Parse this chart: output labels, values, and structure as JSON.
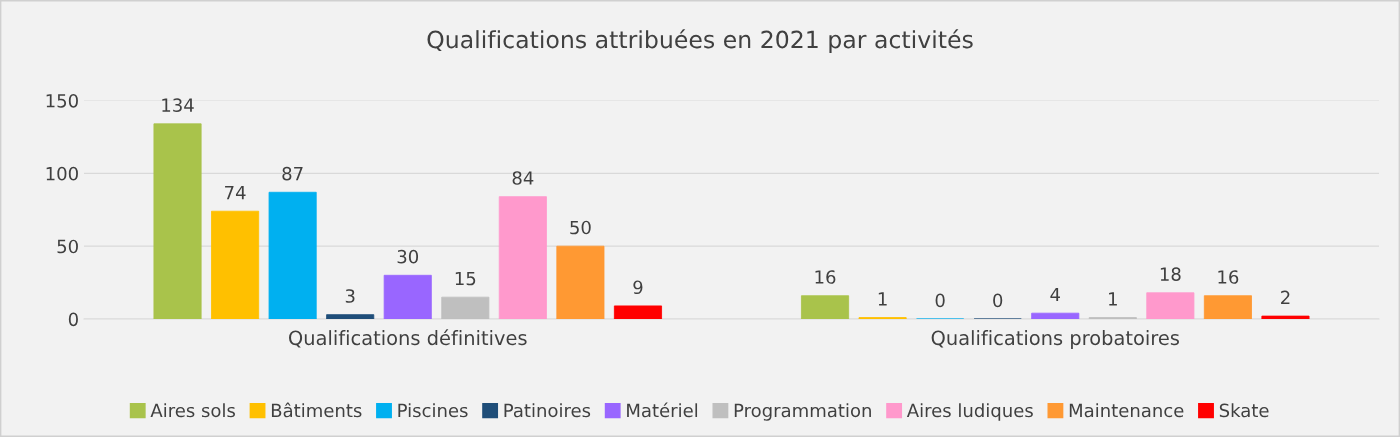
{
  "chart_data": {
    "type": "bar",
    "title": "Qualifications attribuées en 2021 par activités",
    "categories": [
      "Qualifications définitives",
      "Qualifications probatoires"
    ],
    "series": [
      {
        "name": "Aires sols",
        "color": "#a9c34b",
        "values": [
          134,
          16
        ]
      },
      {
        "name": "Bâtiments",
        "color": "#ffc000",
        "values": [
          74,
          1
        ]
      },
      {
        "name": "Piscines",
        "color": "#00b0f0",
        "values": [
          87,
          0
        ]
      },
      {
        "name": "Patinoires",
        "color": "#1f4e79",
        "values": [
          3,
          0
        ]
      },
      {
        "name": "Matériel",
        "color": "#9966ff",
        "values": [
          30,
          4
        ]
      },
      {
        "name": "Programmation",
        "color": "#bfbfbf",
        "values": [
          15,
          1
        ]
      },
      {
        "name": "Aires ludiques",
        "color": "#ff99cc",
        "values": [
          84,
          18
        ]
      },
      {
        "name": "Maintenance",
        "color": "#ff9933",
        "values": [
          50,
          16
        ]
      },
      {
        "name": "Skate",
        "color": "#ff0000",
        "values": [
          9,
          2
        ]
      }
    ],
    "ylim": [
      0,
      150
    ],
    "yticks": [
      0,
      50,
      100,
      150
    ],
    "grid": "y",
    "legend": "bottom",
    "data_labels": true
  }
}
